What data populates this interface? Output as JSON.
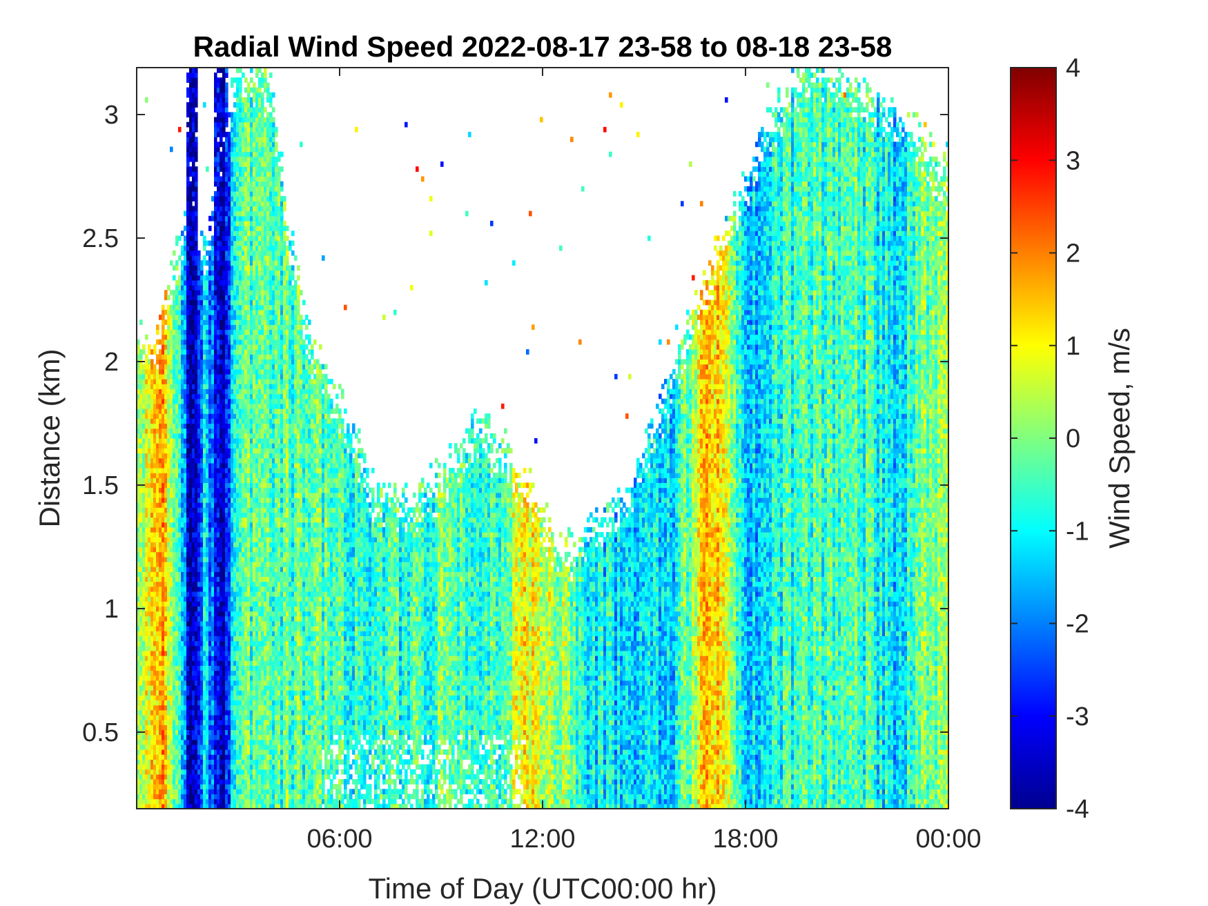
{
  "chart_data": {
    "type": "heatmap",
    "title": "Radial Wind Speed 2022-08-17 23-58 to 08-18 23-58",
    "xlabel": "Time of Day (UTC00:00 hr)",
    "ylabel": "Distance (km)",
    "x_ticks": [
      "06:00",
      "12:00",
      "18:00",
      "00:00"
    ],
    "x_tick_hours": [
      6,
      12,
      18,
      24
    ],
    "xlim_hours": [
      0,
      24
    ],
    "y_ticks": [
      "0.5",
      "1",
      "1.5",
      "2",
      "2.5",
      "3"
    ],
    "y_tick_values": [
      0.5,
      1,
      1.5,
      2,
      2.5,
      3
    ],
    "ylim": [
      0.19,
      3.19
    ],
    "colorbar": {
      "label": "Wind Speed, m/s",
      "ticks": [
        "4",
        "3",
        "2",
        "1",
        "0",
        "-1",
        "-2",
        "-3",
        "-4"
      ],
      "tick_values": [
        4,
        3,
        2,
        1,
        0,
        -1,
        -2,
        -3,
        -4
      ],
      "range": [
        -4,
        4
      ],
      "colormap": "jet"
    },
    "signal_top_km": [
      [
        0.0,
        2.1
      ],
      [
        0.5,
        2.0
      ],
      [
        1.0,
        2.3
      ],
      [
        1.5,
        2.6
      ],
      [
        2.0,
        2.4
      ],
      [
        3.0,
        3.19
      ],
      [
        4.0,
        3.1
      ],
      [
        4.5,
        2.5
      ],
      [
        5.0,
        2.1
      ],
      [
        6.0,
        1.8
      ],
      [
        7.0,
        1.45
      ],
      [
        8.0,
        1.4
      ],
      [
        9.0,
        1.5
      ],
      [
        10.0,
        1.7
      ],
      [
        11.0,
        1.6
      ],
      [
        12.0,
        1.35
      ],
      [
        12.5,
        1.2
      ],
      [
        13.5,
        1.3
      ],
      [
        14.5,
        1.45
      ],
      [
        15.5,
        1.8
      ],
      [
        16.5,
        2.2
      ],
      [
        17.5,
        2.5
      ],
      [
        18.5,
        2.9
      ],
      [
        20.0,
        3.19
      ],
      [
        22.0,
        3.0
      ],
      [
        23.0,
        2.9
      ],
      [
        24.0,
        2.7
      ]
    ],
    "mean_speed_by_hour": [
      [
        0.0,
        0.0
      ],
      [
        0.8,
        1.4
      ],
      [
        1.3,
        -0.5
      ],
      [
        1.6,
        -4.0
      ],
      [
        2.0,
        -1.0
      ],
      [
        2.5,
        -4.0
      ],
      [
        3.0,
        -0.5
      ],
      [
        5.0,
        -0.3
      ],
      [
        7.0,
        -0.8
      ],
      [
        9.0,
        -0.4
      ],
      [
        10.5,
        -0.6
      ],
      [
        11.5,
        0.8
      ],
      [
        12.5,
        0.3
      ],
      [
        13.5,
        -1.0
      ],
      [
        15.0,
        -1.5
      ],
      [
        16.0,
        -1.0
      ],
      [
        17.0,
        1.6
      ],
      [
        18.0,
        -1.5
      ],
      [
        19.5,
        -0.6
      ],
      [
        21.0,
        -0.3
      ],
      [
        22.5,
        -1.2
      ],
      [
        23.5,
        0.2
      ],
      [
        24.0,
        0.0
      ]
    ]
  }
}
